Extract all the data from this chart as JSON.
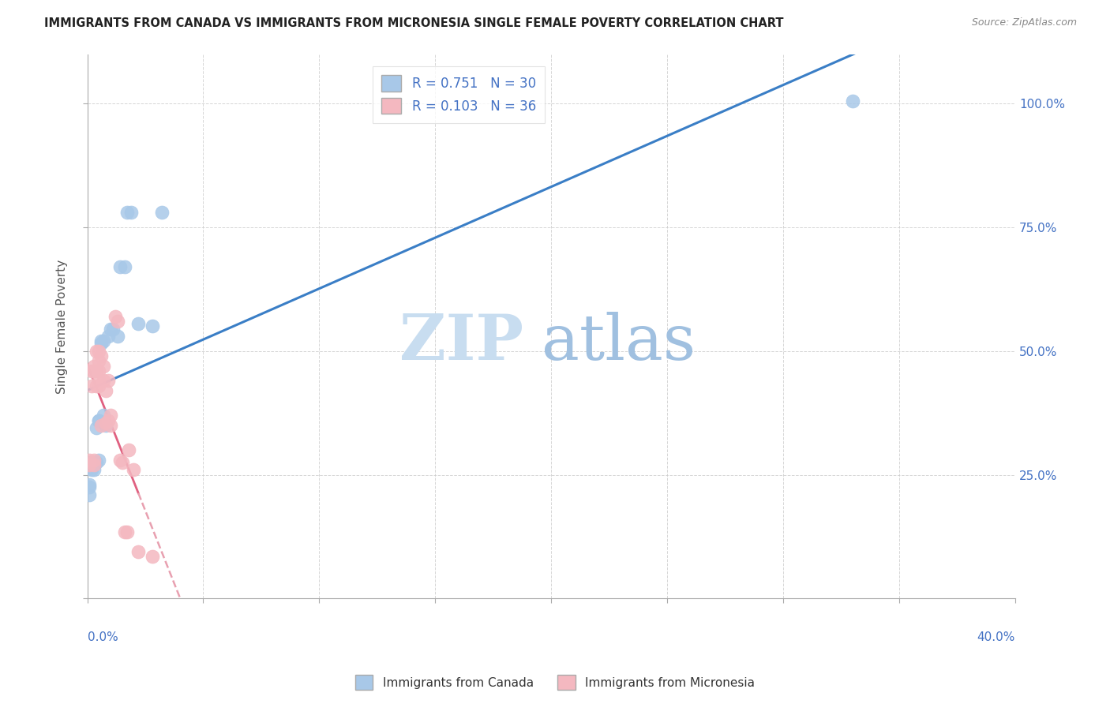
{
  "title": "IMMIGRANTS FROM CANADA VS IMMIGRANTS FROM MICRONESIA SINGLE FEMALE POVERTY CORRELATION CHART",
  "source": "Source: ZipAtlas.com",
  "ylabel": "Single Female Poverty",
  "legend_blue_r": "R = 0.751",
  "legend_blue_n": "N = 30",
  "legend_pink_r": "R = 0.103",
  "legend_pink_n": "N = 36",
  "blue_color": "#a8c8e8",
  "pink_color": "#f4b8c0",
  "blue_line_color": "#3a7ec6",
  "pink_line_color": "#e06080",
  "pink_dash_color": "#e8a0b0",
  "watermark_zip": "ZIP",
  "watermark_atlas": "atlas",
  "xlim": [
    0.0,
    0.4
  ],
  "ylim": [
    0.0,
    1.1
  ],
  "canada_x": [
    0.001,
    0.001,
    0.001,
    0.002,
    0.002,
    0.002,
    0.003,
    0.003,
    0.004,
    0.004,
    0.005,
    0.005,
    0.005,
    0.006,
    0.006,
    0.007,
    0.007,
    0.008,
    0.009,
    0.01,
    0.011,
    0.013,
    0.014,
    0.016,
    0.017,
    0.019,
    0.022,
    0.028,
    0.032,
    0.33
  ],
  "canada_y": [
    0.21,
    0.225,
    0.23,
    0.265,
    0.275,
    0.26,
    0.275,
    0.26,
    0.275,
    0.345,
    0.36,
    0.36,
    0.28,
    0.52,
    0.515,
    0.52,
    0.37,
    0.35,
    0.53,
    0.545,
    0.545,
    0.53,
    0.67,
    0.67,
    0.78,
    0.78,
    0.555,
    0.55,
    0.78,
    1.005
  ],
  "micronesia_x": [
    0.001,
    0.001,
    0.002,
    0.002,
    0.003,
    0.003,
    0.003,
    0.003,
    0.004,
    0.004,
    0.004,
    0.005,
    0.005,
    0.005,
    0.005,
    0.005,
    0.006,
    0.006,
    0.007,
    0.007,
    0.008,
    0.008,
    0.009,
    0.009,
    0.01,
    0.01,
    0.012,
    0.013,
    0.014,
    0.015,
    0.016,
    0.017,
    0.018,
    0.02,
    0.022,
    0.028
  ],
  "micronesia_y": [
    0.27,
    0.28,
    0.43,
    0.46,
    0.27,
    0.28,
    0.46,
    0.47,
    0.43,
    0.46,
    0.5,
    0.43,
    0.44,
    0.46,
    0.48,
    0.5,
    0.35,
    0.49,
    0.47,
    0.44,
    0.355,
    0.42,
    0.44,
    0.36,
    0.35,
    0.37,
    0.57,
    0.56,
    0.28,
    0.275,
    0.135,
    0.135,
    0.3,
    0.26,
    0.095,
    0.085
  ]
}
